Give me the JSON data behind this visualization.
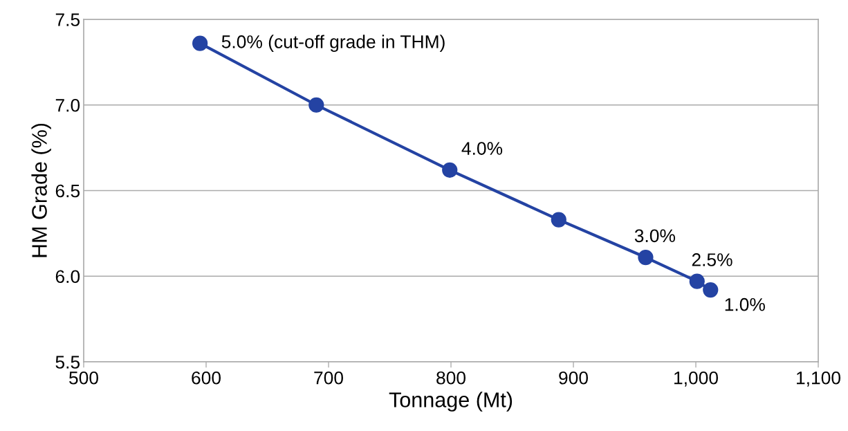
{
  "chart_data": {
    "type": "line",
    "xlabel": "Tonnage (Mt)",
    "ylabel": "HM Grade (%)",
    "x": [
      595,
      690,
      799,
      888,
      959,
      1001,
      1012
    ],
    "series": [
      {
        "color": "#2443a3",
        "values": [
          7.36,
          7.0,
          6.62,
          6.33,
          6.11,
          5.97,
          5.92
        ]
      }
    ],
    "marker": "circle",
    "line_style": "solid",
    "grid": "y",
    "xlim": [
      500,
      1100
    ],
    "xticks": [
      500,
      600,
      700,
      800,
      900,
      {
        "value": 1000,
        "label": "1,000"
      },
      {
        "value": 1100,
        "label": "1,100"
      }
    ],
    "ylim": [
      5.5,
      7.5
    ],
    "yticks": [
      {
        "value": 5.5,
        "label": "5.5"
      },
      {
        "value": 6.0,
        "label": "6.0"
      },
      {
        "value": 6.5,
        "label": "6.5"
      },
      {
        "value": 7.0,
        "label": "7.0"
      },
      {
        "value": 7.5,
        "label": "7.5"
      }
    ],
    "annotations": [
      {
        "text": "5.0% (cut-off grade in THM)",
        "x": 595,
        "y": 7.36
      },
      {
        "text": "4.0%",
        "x": 799,
        "y": 6.62
      },
      {
        "text": "3.0%",
        "x": 959,
        "y": 6.11
      },
      {
        "text": "2.5%",
        "x": 1001,
        "y": 5.97
      },
      {
        "text": "1.0%",
        "x": 1012,
        "y": 5.92
      }
    ]
  }
}
